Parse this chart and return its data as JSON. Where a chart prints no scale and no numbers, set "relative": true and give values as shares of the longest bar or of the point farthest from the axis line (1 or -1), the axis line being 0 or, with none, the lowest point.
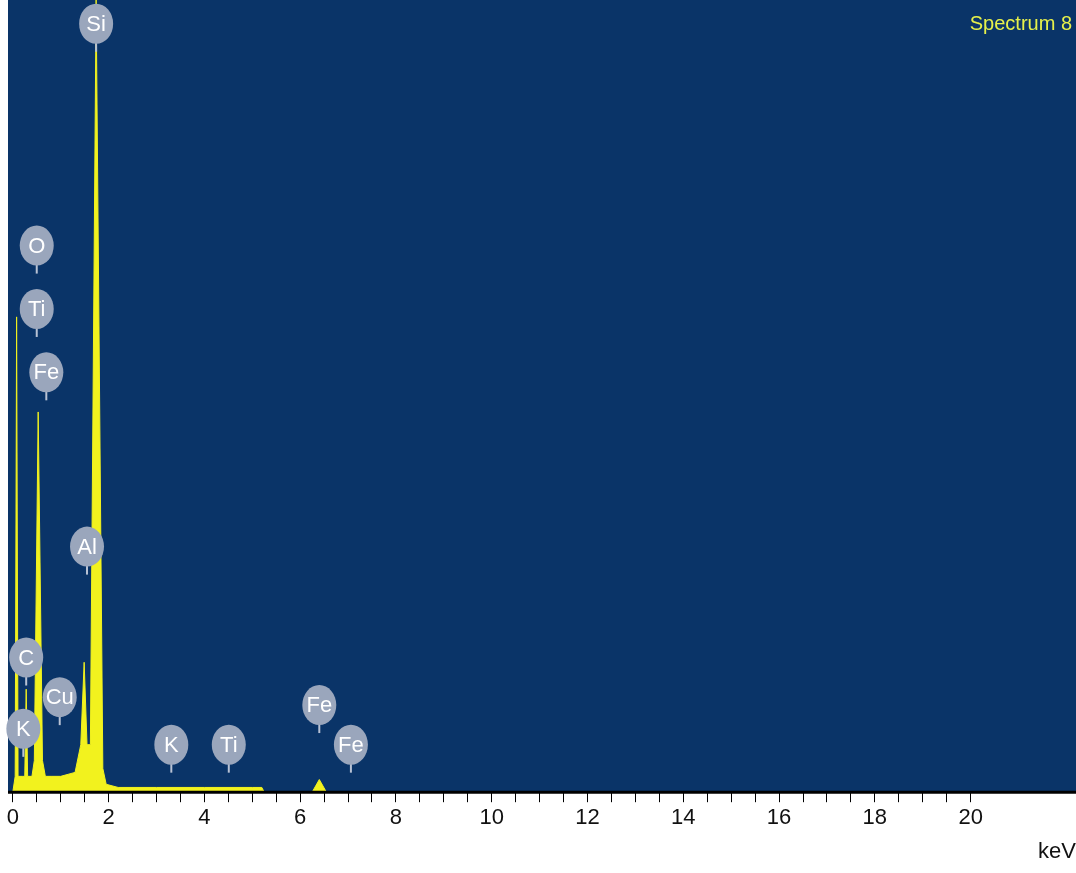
{
  "chart_data": {
    "type": "area",
    "title": "Spectrum 8",
    "xlabel": "keV",
    "relative": true,
    "legend": false,
    "grid": false,
    "marker": "none",
    "x": [
      0,
      0.05,
      0.08,
      0.11,
      0.2,
      0.25,
      0.28,
      0.31,
      0.4,
      0.45,
      0.53,
      0.62,
      0.68,
      0.8,
      1.0,
      1.3,
      1.42,
      1.49,
      1.55,
      1.62,
      1.74,
      1.88,
      1.95,
      2.2,
      3.0,
      4.0,
      5.0,
      5.2,
      5.25,
      6.25,
      6.4,
      6.55,
      6.6,
      8.0,
      22.2
    ],
    "series": [
      {
        "color": "#f2f21e",
        "values": [
          0,
          0.02,
          0.6,
          0.02,
          0.02,
          0.02,
          0.13,
          0.02,
          0.02,
          0.04,
          0.48,
          0.04,
          0.02,
          0.02,
          0.02,
          0.025,
          0.06,
          0.164,
          0.06,
          0.06,
          1,
          0.03,
          0.01,
          0.006,
          0.006,
          0.006,
          0.006,
          0.006,
          0,
          0,
          0.016,
          0,
          0,
          0,
          0
        ]
      }
    ],
    "xlim": [
      -0.1,
      22.2
    ],
    "xticks": [
      0,
      {
        "value": 0.5,
        "label": null
      },
      {
        "value": 1,
        "label": null
      },
      {
        "value": 1.5,
        "label": null
      },
      2,
      {
        "value": 2.5,
        "label": null
      },
      {
        "value": 3,
        "label": null
      },
      {
        "value": 3.5,
        "label": null
      },
      4,
      {
        "value": 4.5,
        "label": null
      },
      {
        "value": 5,
        "label": null
      },
      {
        "value": 5.5,
        "label": null
      },
      6,
      {
        "value": 6.5,
        "label": null
      },
      {
        "value": 7,
        "label": null
      },
      {
        "value": 7.5,
        "label": null
      },
      8,
      {
        "value": 8.5,
        "label": null
      },
      {
        "value": 9,
        "label": null
      },
      {
        "value": 9.5,
        "label": null
      },
      10,
      {
        "value": 10.5,
        "label": null
      },
      {
        "value": 11,
        "label": null
      },
      {
        "value": 11.5,
        "label": null
      },
      12,
      {
        "value": 12.5,
        "label": null
      },
      {
        "value": 13,
        "label": null
      },
      {
        "value": 13.5,
        "label": null
      },
      14,
      {
        "value": 14.5,
        "label": null
      },
      {
        "value": 15,
        "label": null
      },
      {
        "value": 15.5,
        "label": null
      },
      16,
      {
        "value": 16.5,
        "label": null
      },
      {
        "value": 17,
        "label": null
      },
      {
        "value": 17.5,
        "label": null
      },
      18,
      {
        "value": 18.5,
        "label": null
      },
      {
        "value": 19,
        "label": null
      },
      {
        "value": 19.5,
        "label": null
      },
      20
    ],
    "annotations": [
      {
        "text": "Si",
        "x": 1.74,
        "y": 0.97
      },
      {
        "text": "O",
        "x": 0.5,
        "y": 0.69
      },
      {
        "text": "Ti",
        "x": 0.5,
        "y": 0.61
      },
      {
        "text": "Fe",
        "x": 0.7,
        "y": 0.53
      },
      {
        "text": "Al",
        "x": 1.55,
        "y": 0.31
      },
      {
        "text": "C",
        "x": 0.28,
        "y": 0.17
      },
      {
        "text": "Cu",
        "x": 0.98,
        "y": 0.12
      },
      {
        "text": "K",
        "x": 0.22,
        "y": 0.08
      },
      {
        "text": "K",
        "x": 3.31,
        "y": 0.06
      },
      {
        "text": "Ti",
        "x": 4.51,
        "y": 0.06
      },
      {
        "text": "Fe",
        "x": 6.4,
        "y": 0.11
      },
      {
        "text": "Fe",
        "x": 7.06,
        "y": 0.06
      }
    ]
  }
}
